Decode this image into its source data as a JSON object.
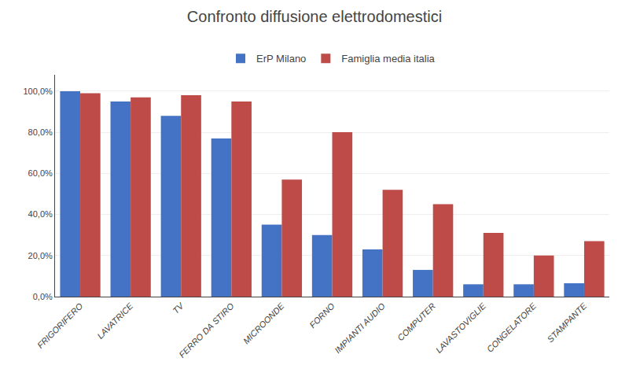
{
  "chart_data": {
    "type": "bar",
    "title": "Confronto diffusione elettrodomestici",
    "categories": [
      "FRIGORIFERO",
      "LAVATRICE",
      "TV",
      "FERRO DA STIRO",
      "MICROONDE",
      "FORNO",
      "IMPIANTI AUDIO",
      "COMPUTER",
      "LAVASTOVIGLIE",
      "CONGELATORE",
      "STAMPANTE"
    ],
    "series": [
      {
        "name": "ErP Milano",
        "color": "#4472C4",
        "values": [
          100.0,
          95.0,
          88.0,
          77.0,
          35.0,
          30.0,
          23.0,
          13.0,
          6.0,
          6.0,
          6.5
        ]
      },
      {
        "name": "Famiglia media italia",
        "color": "#BE4B48",
        "values": [
          99.0,
          97.0,
          98.0,
          95.0,
          57.0,
          80.0,
          52.0,
          45.0,
          31.0,
          20.0,
          27.0
        ]
      }
    ],
    "ylim": [
      0,
      108
    ],
    "yticks": [
      {
        "value": 0.0,
        "label": "0,0%"
      },
      {
        "value": 20.0,
        "label": "20,0%"
      },
      {
        "value": 40.0,
        "label": "40,0%"
      },
      {
        "value": 60.0,
        "label": "60,0%"
      },
      {
        "value": 80.0,
        "label": "80,0%"
      },
      {
        "value": 100.0,
        "label": "100,0%"
      }
    ],
    "grid": true,
    "legend": "top"
  }
}
